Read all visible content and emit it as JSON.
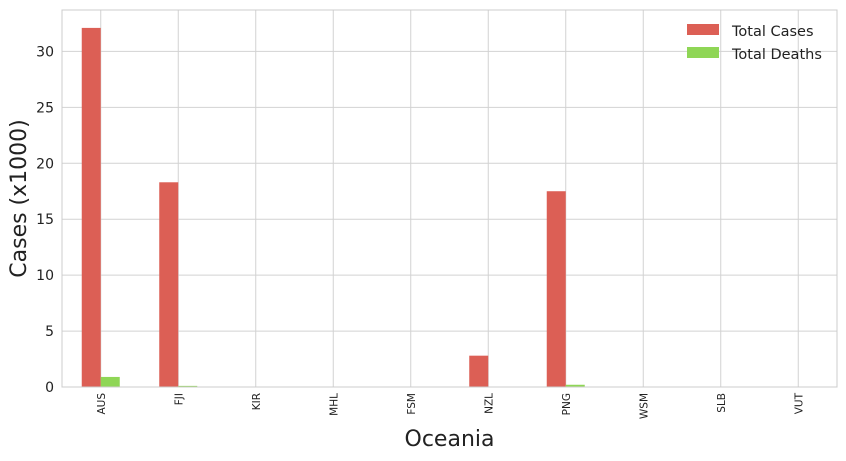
{
  "chart_data": {
    "type": "bar",
    "title": "",
    "xlabel": "Oceania",
    "ylabel": "Cases (x1000)",
    "categories": [
      "AUS",
      "FJI",
      "KIR",
      "MHL",
      "FSM",
      "NZL",
      "PNG",
      "WSM",
      "SLB",
      "VUT"
    ],
    "series": [
      {
        "name": "Total Cases",
        "color": "#dc5f55",
        "values": [
          32.1,
          18.3,
          0,
          0,
          0,
          2.8,
          17.5,
          0,
          0,
          0
        ]
      },
      {
        "name": "Total Deaths",
        "color": "#8fd656",
        "values": [
          0.9,
          0.1,
          0,
          0,
          0,
          0.03,
          0.2,
          0,
          0,
          0
        ]
      }
    ],
    "ylim": [
      0,
      33.7
    ],
    "yticks": [
      0,
      5,
      10,
      15,
      20,
      25,
      30
    ],
    "grid": true,
    "legend_position": "top-right"
  }
}
